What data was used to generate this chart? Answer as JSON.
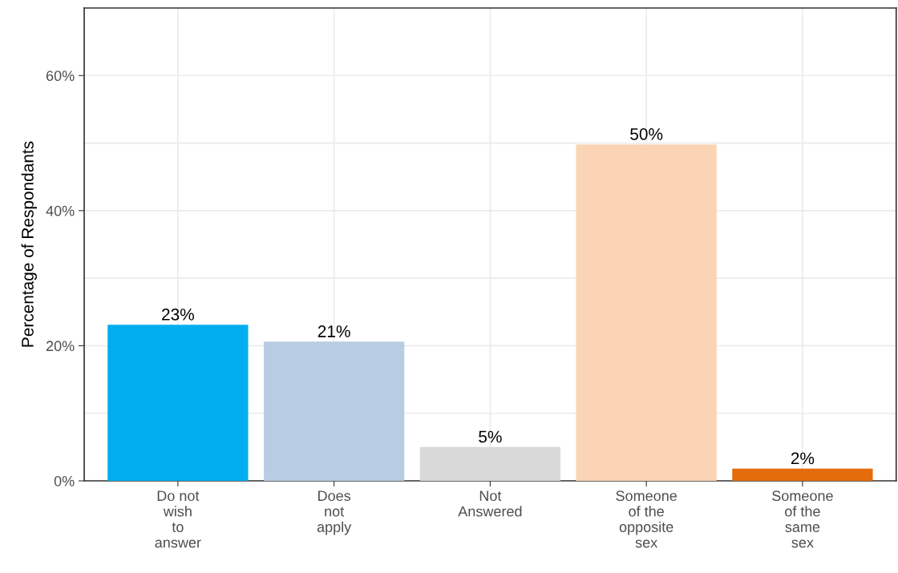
{
  "chart_data": {
    "type": "bar",
    "ylabel": "Percentage of Respondants",
    "categories": [
      "Do not\nwish\nto\nanswer",
      "Does\nnot\napply",
      "Not\nAnswered",
      "Someone\nof the\nopposite\nsex",
      "Someone\nof the\nsame\nsex"
    ],
    "values": [
      23.1,
      20.6,
      5.0,
      49.8,
      1.8
    ],
    "colors": [
      "#00aeef",
      "#b8cce4",
      "#d9d9d9",
      "#fad4b4",
      "#e46c0a"
    ],
    "value_labels": [
      "23%",
      "21%",
      "5%",
      "50%",
      "2%"
    ],
    "ylim": [
      0,
      70
    ],
    "yticks": [
      {
        "value": 0,
        "label": "0%"
      },
      {
        "value": 10,
        "label": null
      },
      {
        "value": 20,
        "label": "20%"
      },
      {
        "value": 30,
        "label": null
      },
      {
        "value": 40,
        "label": "40%"
      },
      {
        "value": 50,
        "label": null
      },
      {
        "value": 60,
        "label": "60%"
      }
    ],
    "grid": true
  }
}
